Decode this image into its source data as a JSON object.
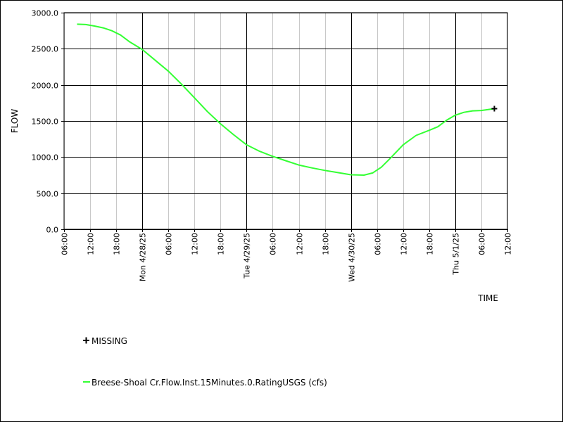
{
  "chart_data": {
    "type": "line",
    "title": "",
    "xlabel": "TIME",
    "ylabel": "FLOW",
    "ylim": [
      0,
      3000
    ],
    "xlim": [
      "2025-04-27T06:00",
      "2025-05-01T12:00"
    ],
    "grid": true,
    "legend_position": "bottom-left",
    "y_ticks": [
      "0.0",
      "500.0",
      "1000.0",
      "1500.0",
      "2000.0",
      "2500.0",
      "3000.0"
    ],
    "x_ticks": [
      {
        "t": "2025-04-27T06:00",
        "label": "06:00",
        "major": false
      },
      {
        "t": "2025-04-27T12:00",
        "label": "12:00",
        "major": false
      },
      {
        "t": "2025-04-27T18:00",
        "label": "18:00",
        "major": false
      },
      {
        "t": "2025-04-28T00:00",
        "label": "Mon 4/28/25",
        "major": true
      },
      {
        "t": "2025-04-28T06:00",
        "label": "06:00",
        "major": false
      },
      {
        "t": "2025-04-28T12:00",
        "label": "12:00",
        "major": false
      },
      {
        "t": "2025-04-28T18:00",
        "label": "18:00",
        "major": false
      },
      {
        "t": "2025-04-29T00:00",
        "label": "Tue 4/29/25",
        "major": true
      },
      {
        "t": "2025-04-29T06:00",
        "label": "06:00",
        "major": false
      },
      {
        "t": "2025-04-29T12:00",
        "label": "12:00",
        "major": false
      },
      {
        "t": "2025-04-29T18:00",
        "label": "18:00",
        "major": false
      },
      {
        "t": "2025-04-30T00:00",
        "label": "Wed 4/30/25",
        "major": true
      },
      {
        "t": "2025-04-30T06:00",
        "label": "06:00",
        "major": false
      },
      {
        "t": "2025-04-30T12:00",
        "label": "12:00",
        "major": false
      },
      {
        "t": "2025-04-30T18:00",
        "label": "18:00",
        "major": false
      },
      {
        "t": "2025-05-01T00:00",
        "label": "Thu 5/1/25",
        "major": true
      },
      {
        "t": "2025-05-01T06:00",
        "label": "06:00",
        "major": false
      },
      {
        "t": "2025-05-01T12:00",
        "label": "12:00",
        "major": false
      }
    ],
    "series": [
      {
        "name": "Breese-Shoal Cr.Flow.Inst.15Minutes.0.RatingUSGS (cfs)",
        "color": "#33ff33",
        "points": [
          [
            "2025-04-27T09:00",
            2840
          ],
          [
            "2025-04-27T11:00",
            2835
          ],
          [
            "2025-04-27T13:00",
            2815
          ],
          [
            "2025-04-27T15:00",
            2790
          ],
          [
            "2025-04-27T17:00",
            2750
          ],
          [
            "2025-04-27T19:00",
            2690
          ],
          [
            "2025-04-27T21:00",
            2600
          ],
          [
            "2025-04-28T00:00",
            2490
          ],
          [
            "2025-04-28T03:00",
            2340
          ],
          [
            "2025-04-28T06:00",
            2190
          ],
          [
            "2025-04-28T09:00",
            2010
          ],
          [
            "2025-04-28T12:00",
            1820
          ],
          [
            "2025-04-28T15:00",
            1630
          ],
          [
            "2025-04-28T18:00",
            1460
          ],
          [
            "2025-04-28T21:00",
            1310
          ],
          [
            "2025-04-29T00:00",
            1170
          ],
          [
            "2025-04-29T03:00",
            1080
          ],
          [
            "2025-04-29T06:00",
            1010
          ],
          [
            "2025-04-29T09:00",
            950
          ],
          [
            "2025-04-29T12:00",
            890
          ],
          [
            "2025-04-29T15:00",
            850
          ],
          [
            "2025-04-29T18:00",
            815
          ],
          [
            "2025-04-29T21:00",
            785
          ],
          [
            "2025-04-30T00:00",
            755
          ],
          [
            "2025-04-30T03:00",
            750
          ],
          [
            "2025-04-30T05:00",
            780
          ],
          [
            "2025-04-30T07:00",
            860
          ],
          [
            "2025-04-30T09:00",
            980
          ],
          [
            "2025-04-30T12:00",
            1170
          ],
          [
            "2025-04-30T15:00",
            1300
          ],
          [
            "2025-04-30T18:00",
            1370
          ],
          [
            "2025-04-30T20:00",
            1420
          ],
          [
            "2025-04-30T22:00",
            1510
          ],
          [
            "2025-05-01T00:00",
            1580
          ],
          [
            "2025-05-01T02:00",
            1620
          ],
          [
            "2025-05-01T04:00",
            1640
          ],
          [
            "2025-05-01T06:00",
            1645
          ],
          [
            "2025-05-01T09:00",
            1670
          ]
        ]
      }
    ],
    "missing": {
      "label": "MISSING",
      "points": [
        [
          "2025-05-01T09:00",
          1670
        ]
      ]
    }
  }
}
